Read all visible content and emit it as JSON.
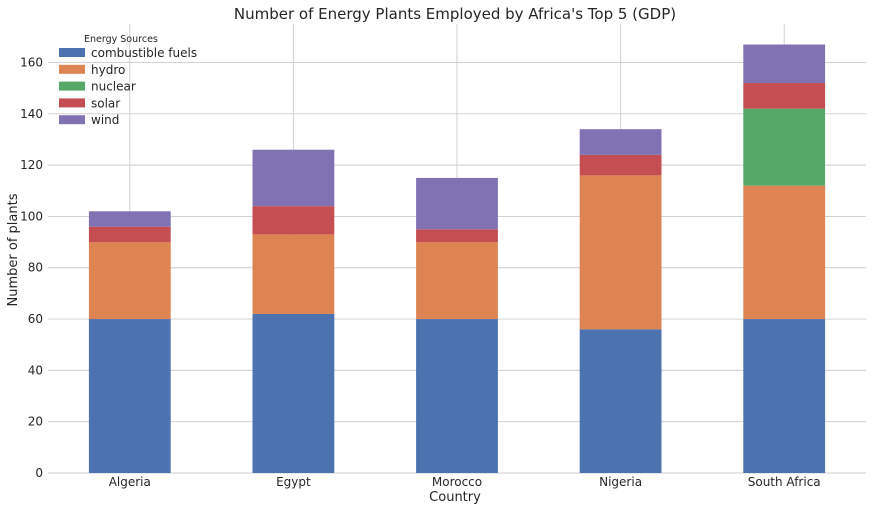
{
  "chart_data": {
    "type": "bar",
    "stacked": true,
    "title": "Number of Energy Plants Employed by Africa's Top 5 (GDP)",
    "xlabel": "Country",
    "ylabel": "Number of plants",
    "categories": [
      "Algeria",
      "Egypt",
      "Morocco",
      "Nigeria",
      "South Africa"
    ],
    "series": [
      {
        "name": "combustible fuels",
        "color": "#4c72b0",
        "values": [
          60,
          62,
          60,
          56,
          60
        ]
      },
      {
        "name": "hydro",
        "color": "#dd8452",
        "values": [
          30,
          31,
          30,
          60,
          52
        ]
      },
      {
        "name": "nuclear",
        "color": "#55a868",
        "values": [
          0,
          0,
          0,
          0,
          30
        ]
      },
      {
        "name": "solar",
        "color": "#c44e52",
        "values": [
          6,
          11,
          5,
          8,
          10
        ]
      },
      {
        "name": "wind",
        "color": "#8172b3",
        "values": [
          6,
          22,
          20,
          10,
          15
        ]
      }
    ],
    "ylim": [
      0,
      175
    ],
    "yticks": [
      0,
      20,
      40,
      60,
      80,
      100,
      120,
      140,
      160
    ],
    "grid": true,
    "legend": {
      "title": "Energy Sources",
      "position": "upper-left"
    }
  }
}
